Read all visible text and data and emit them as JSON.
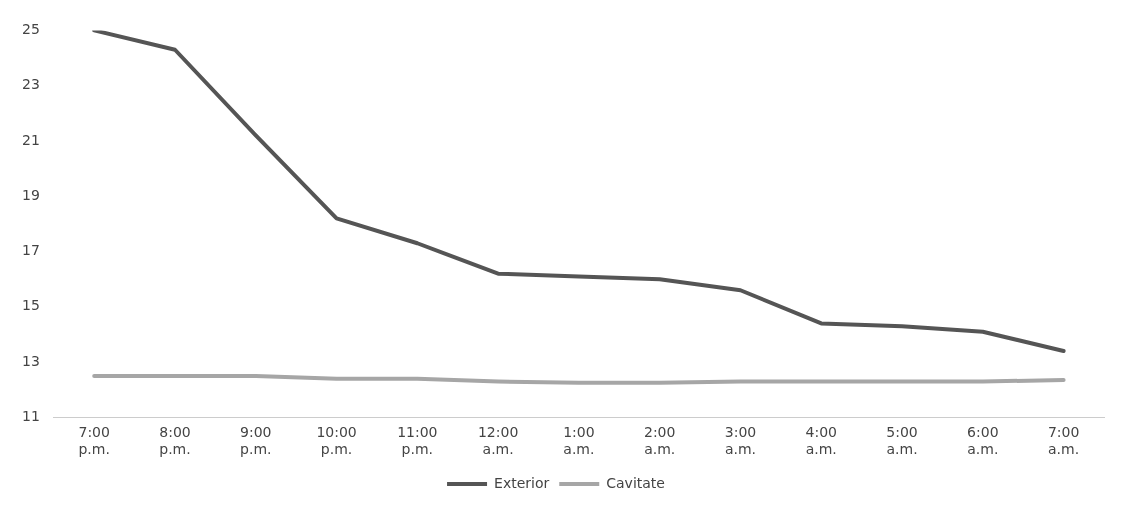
{
  "chart_data": {
    "type": "line",
    "categories": [
      "7:00 p.m.",
      "8:00 p.m.",
      "9:00 p.m.",
      "10:00 p.m.",
      "11:00 p.m.",
      "12:00 a.m.",
      "1:00 a.m.",
      "2:00 a.m.",
      "3:00 a.m.",
      "4:00 a.m.",
      "5:00 a.m.",
      "6:00 a.m.",
      "7:00 a.m."
    ],
    "series": [
      {
        "name": "Exterior",
        "color": "#555555",
        "values": [
          25,
          24.3,
          21.2,
          18.2,
          17.3,
          16.2,
          16.1,
          16.0,
          15.6,
          14.4,
          14.3,
          14.1,
          13.4
        ]
      },
      {
        "name": "Cavitate",
        "color": "#a6a6a6",
        "values": [
          12.5,
          12.5,
          12.5,
          12.4,
          12.4,
          12.3,
          12.25,
          12.25,
          12.3,
          12.3,
          12.3,
          12.3,
          12.35
        ]
      }
    ],
    "ylim": [
      11,
      25
    ],
    "yticks": [
      11,
      13,
      15,
      17,
      19,
      21,
      23,
      25
    ],
    "grid": false,
    "legend": "bottom",
    "marker": "none",
    "line_style": "solid"
  }
}
